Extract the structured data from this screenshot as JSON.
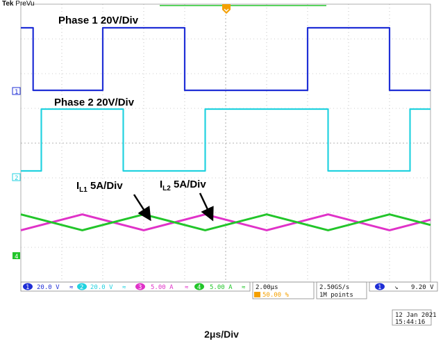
{
  "header": {
    "brand": "Tek",
    "mode": "PreVu"
  },
  "annotations": {
    "phase1": "Phase 1 20V/Div",
    "phase2": "Phase 2 20V/Div",
    "il1_main": "I",
    "il1_sub": "L1",
    "il1_rest": " 5A/Div",
    "il2_main": "I",
    "il2_sub": "L2",
    "il2_rest": " 5A/Div"
  },
  "channel_markers": {
    "ch1": "1",
    "ch2": "2",
    "ch4": "4"
  },
  "status_bar": {
    "ch1_num": "1",
    "ch1_scale": "20.0 V",
    "ch1_bw": "≈",
    "ch2_num": "2",
    "ch2_scale": "20.0 V",
    "ch2_bw": "≈",
    "ch3_num": "3",
    "ch3_scale": "5.00 A",
    "ch3_bw": "≈",
    "ch4_num": "4",
    "ch4_scale": "5.00 A",
    "ch4_bw": "≈",
    "timebase": "2.00µs",
    "trigger_pos": "50.00 %",
    "sample_rate": "2.50GS/s",
    "record_length": "1M points",
    "trig_ch": "1",
    "trig_slope": "↘",
    "trig_level": "9.20 V"
  },
  "datetime": {
    "date": "12 Jan  2021",
    "time": "15:44:16"
  },
  "footer": {
    "caption": "2μs/Div"
  },
  "colors": {
    "ch1": "#1f2fd6",
    "ch2": "#22d2e0",
    "ch3": "#e032c8",
    "ch4": "#22c52a",
    "grid": "#9a9a9a",
    "trigger_marker": "#f4a000"
  },
  "chart_data": {
    "type": "line",
    "x_unit": "µs",
    "xlim": [
      0,
      20
    ],
    "grid": true,
    "grid_divisions": {
      "x": 10,
      "y": 8
    },
    "series": [
      {
        "name": "Phase 1",
        "unit": "V",
        "scale_per_div": 20,
        "points": [
          [
            0,
            1
          ],
          [
            0,
            1
          ],
          [
            0.6,
            1
          ],
          [
            0.6,
            0
          ],
          [
            4.0,
            0
          ],
          [
            4.0,
            1
          ],
          [
            8.0,
            1
          ],
          [
            8.0,
            0
          ],
          [
            14.0,
            0
          ],
          [
            14.0,
            1
          ],
          [
            18.0,
            1
          ],
          [
            18.0,
            0
          ],
          [
            20,
            0
          ]
        ]
      },
      {
        "name": "Phase 2",
        "unit": "V",
        "scale_per_div": 20,
        "points": [
          [
            0,
            0
          ],
          [
            1.0,
            0
          ],
          [
            1.0,
            1
          ],
          [
            5.0,
            1
          ],
          [
            5.0,
            0
          ],
          [
            9.0,
            0
          ],
          [
            9.0,
            1
          ],
          [
            15.0,
            1
          ],
          [
            15.0,
            0
          ],
          [
            19.0,
            0
          ],
          [
            19.0,
            1
          ],
          [
            20,
            1
          ]
        ]
      },
      {
        "name": "I_L1",
        "unit": "A",
        "scale_per_div": 5,
        "points": [
          [
            0,
            -0.6
          ],
          [
            3,
            0.6
          ],
          [
            6,
            -0.6
          ],
          [
            9,
            0.6
          ],
          [
            12,
            -0.6
          ],
          [
            15,
            0.6
          ],
          [
            18,
            -0.6
          ],
          [
            20,
            0.2
          ]
        ]
      },
      {
        "name": "I_L2",
        "unit": "A",
        "scale_per_div": 5,
        "points": [
          [
            0,
            0.6
          ],
          [
            3,
            -0.6
          ],
          [
            6,
            0.6
          ],
          [
            9,
            -0.6
          ],
          [
            12,
            0.6
          ],
          [
            15,
            -0.6
          ],
          [
            18,
            0.6
          ],
          [
            20,
            -0.2
          ]
        ]
      }
    ]
  }
}
